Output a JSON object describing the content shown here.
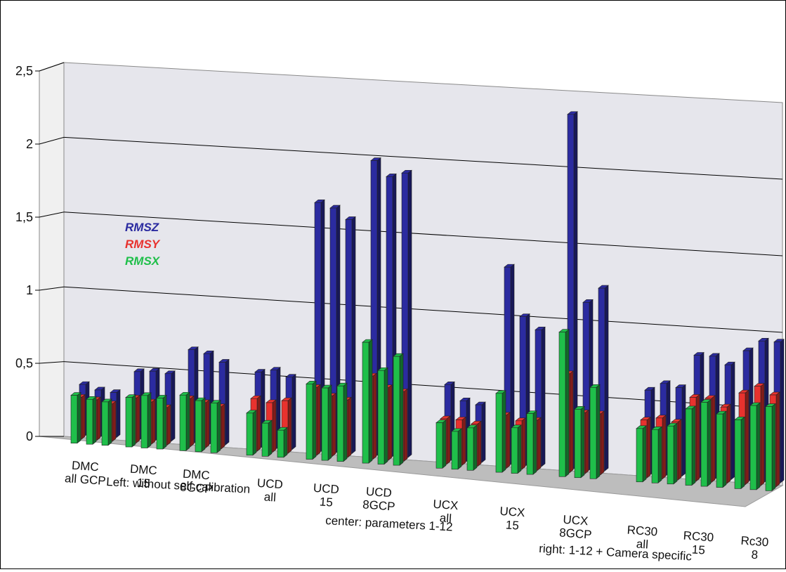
{
  "chart_data": {
    "type": "bar",
    "subtype": "3d-clustered",
    "ylim": [
      0,
      2.5
    ],
    "y_ticks": [
      "0",
      "0,5",
      "1",
      "1,5",
      "2",
      "2,5"
    ],
    "y_tick_values": [
      0,
      0.5,
      1,
      1.5,
      2,
      2.5
    ],
    "grid": true,
    "legend_position": "upper-left",
    "categories": [
      [
        "DMC",
        "all GCP"
      ],
      [
        "DMC",
        "15"
      ],
      [
        "DMC",
        "8GCP"
      ],
      [
        "UCD",
        "all"
      ],
      [
        "UCD",
        "15"
      ],
      [
        "UCD",
        "8GCP"
      ],
      [
        "UCX",
        "all"
      ],
      [
        "UCX",
        "15"
      ],
      [
        "UCX",
        "8GCP"
      ],
      [
        "RC30",
        "all"
      ],
      [
        "RC30",
        "15"
      ],
      [
        "Rc30",
        "8"
      ]
    ],
    "series": [
      {
        "name": "RMSX",
        "color": "#1fbf4a",
        "values": [
          [
            0.32,
            0.3,
            0.29
          ],
          [
            0.33,
            0.35,
            0.34
          ],
          [
            0.37,
            0.34,
            0.33
          ],
          [
            0.28,
            0.22,
            0.18
          ],
          [
            0.5,
            0.48,
            0.5
          ],
          [
            0.8,
            0.62,
            0.72
          ],
          [
            0.3,
            0.25,
            0.28
          ],
          [
            0.52,
            0.3,
            0.4
          ],
          [
            0.95,
            0.45,
            0.6
          ],
          [
            0.35,
            0.35,
            0.38
          ],
          [
            0.5,
            0.55,
            0.48
          ],
          [
            0.45,
            0.55,
            0.55
          ]
        ]
      },
      {
        "name": "RMSY",
        "color": "#e8322e",
        "values": [
          [
            0.28,
            0.27,
            0.25
          ],
          [
            0.3,
            0.28,
            0.25
          ],
          [
            0.32,
            0.3,
            0.28
          ],
          [
            0.35,
            0.33,
            0.35
          ],
          [
            0.45,
            0.4,
            0.38
          ],
          [
            0.55,
            0.48,
            0.46
          ],
          [
            0.3,
            0.3,
            0.28
          ],
          [
            0.35,
            0.32,
            0.33
          ],
          [
            0.65,
            0.4,
            0.4
          ],
          [
            0.38,
            0.4,
            0.38
          ],
          [
            0.55,
            0.55,
            0.5
          ],
          [
            0.6,
            0.65,
            0.6
          ]
        ]
      },
      {
        "name": "RMSZ",
        "color": "#2b2ba0",
        "values": [
          [
            0.34,
            0.31,
            0.3
          ],
          [
            0.45,
            0.46,
            0.45
          ],
          [
            0.62,
            0.6,
            0.55
          ],
          [
            0.5,
            0.52,
            0.48
          ],
          [
            1.65,
            1.62,
            1.55
          ],
          [
            1.95,
            1.85,
            1.88
          ],
          [
            0.5,
            0.4,
            0.38
          ],
          [
            1.3,
            0.98,
            0.9
          ],
          [
            2.33,
            1.1,
            1.2
          ],
          [
            0.55,
            0.6,
            0.58
          ],
          [
            0.8,
            0.8,
            0.75
          ],
          [
            0.85,
            0.92,
            0.92
          ]
        ]
      }
    ],
    "group_labels": [
      "Left: without self calibration",
      "center: parameters 1-12",
      "right: 1-12 + Camera specific"
    ]
  }
}
